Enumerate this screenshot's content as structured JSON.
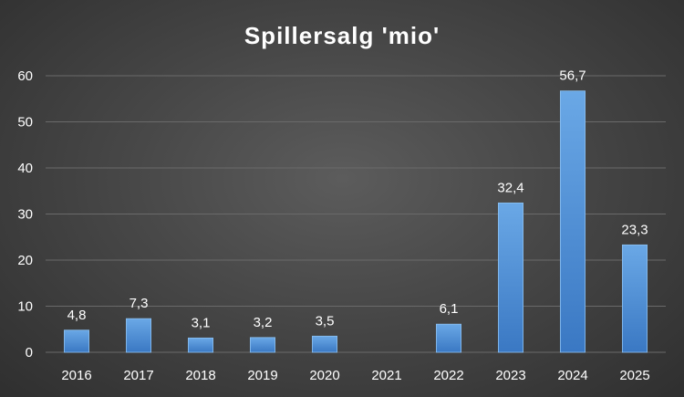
{
  "chart_data": {
    "type": "bar",
    "title": "Spillersalg 'mio'",
    "categories": [
      "2016",
      "2017",
      "2018",
      "2019",
      "2020",
      "2021",
      "2022",
      "2023",
      "2024",
      "2025"
    ],
    "values": [
      4.8,
      7.3,
      3.1,
      3.2,
      3.5,
      0,
      6.1,
      32.4,
      56.7,
      23.3
    ],
    "data_labels": [
      "4,8",
      "7,3",
      "3,1",
      "3,2",
      "3,5",
      "",
      "6,1",
      "32,4",
      "56,7",
      "23,3"
    ],
    "ylim": [
      0,
      60
    ],
    "yticks": [
      0,
      10,
      20,
      30,
      40,
      50,
      60
    ],
    "grid": true,
    "legend": "none",
    "colors": {
      "bar_top": "#6aa8e6",
      "bar_bottom": "#3a78c3",
      "bar_edge": "#8cc0f0",
      "grid": "#6a6a6a",
      "text": "#ffffff"
    }
  }
}
